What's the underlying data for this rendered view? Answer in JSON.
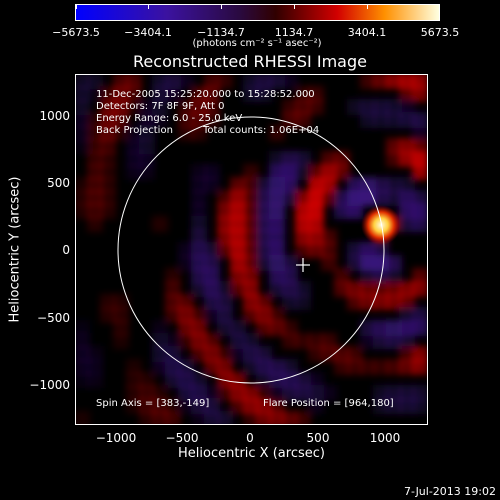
{
  "colorbar": {
    "labels": [
      "−5673.5",
      "−3404.1",
      "−1134.7",
      "1134.7",
      "3404.1",
      "5673.5"
    ],
    "units": "(photons cm⁻² s⁻¹ asec⁻²)"
  },
  "title": "Reconstructed RHESSI Image",
  "annotations": {
    "time_range": "11-Dec-2005 15:25:20.000 to 15:28:52.000",
    "detectors": "Detectors: 7F 8F 9F, Att 0",
    "energy": "Energy Range: 6.0 - 25.0 keV",
    "method": "Back Projection",
    "counts": "Total counts: 1.06E+04",
    "spin_axis": "Spin Axis = [383,-149]",
    "flare_position": "Flare Position = [964,180]"
  },
  "axes": {
    "xlabel": "Heliocentric X (arcsec)",
    "ylabel": "Heliocentric Y (arcsec)",
    "xticks": [
      "−1000",
      "−500",
      "0",
      "500",
      "1000"
    ],
    "yticks": [
      "1000",
      "500",
      "0",
      "−500",
      "−1000"
    ]
  },
  "footer": {
    "date": "7-Jul-2013 19:02"
  },
  "colors": {
    "background": "#000000",
    "foreground": "#ffffff",
    "positive": "#e00000",
    "negative": "#3b1680",
    "flare_core": "#fff4a0"
  }
}
